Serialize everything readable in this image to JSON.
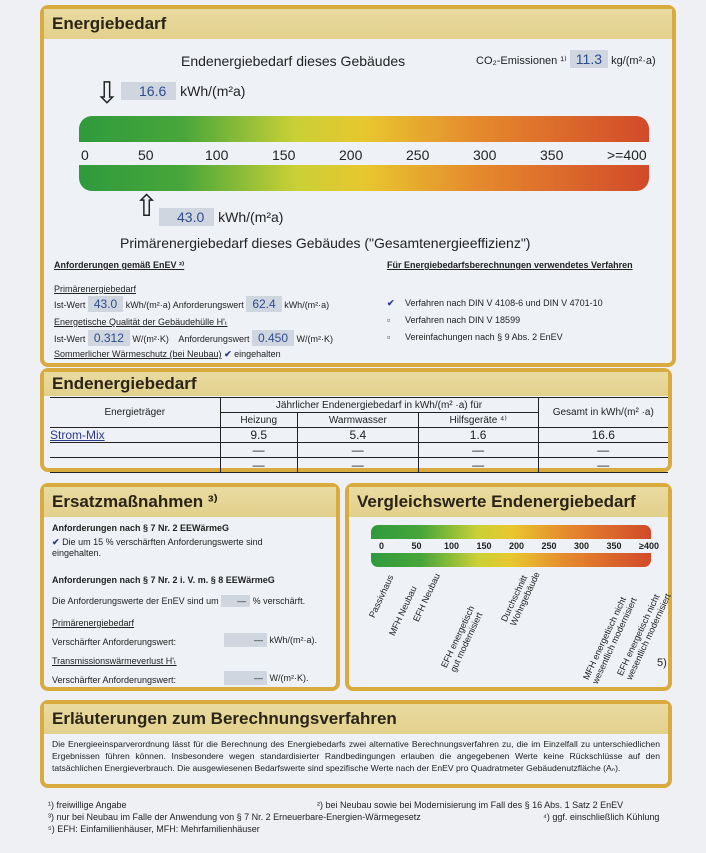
{
  "energiebedarf": {
    "title": "Energiebedarf",
    "end_label": "Endenergiebedarf   dieses  Gebäudes",
    "co2_label": "CO₂-Emissionen ¹⁾",
    "co2_value": "11.3",
    "co2_unit": "kg/(m²·a)",
    "end_value": "16.6",
    "end_value_num": 16.6,
    "unit": "kWh/(m²a)",
    "prim_value": "43.0",
    "prim_value_num": 43.0,
    "prim_label": "Primärenergiebedarf   dieses  Gebäudes   (\"Gesamtenergieeffizienz\")",
    "scale": [
      "0",
      "50",
      "100",
      "150",
      "200",
      "250",
      "300",
      "350",
      ">=400"
    ]
  },
  "anforderungen": {
    "title": "Anforderungen gemäß EnEV ²⁾",
    "prim_heading": "Primärenergiebedarf",
    "ist_label": "Ist-Wert",
    "ist_prim": "43.0",
    "unit_kwh": "kWh/(m²·a)",
    "anf_label": "Anforderungswert",
    "anf_prim": "62.4",
    "huelle_heading": "Energetische Qualität der Gebäudehülle H'ₜ",
    "ist_h": "0.312",
    "unit_w": "W/(m²·K)",
    "anf_h": "0.450",
    "sommer": "Sommerlicher Wärmeschutz (bei Neubau)",
    "sommer_status": "eingehalten"
  },
  "verfahren": {
    "title": "Für Energiebedarfsberechnungen verwendetes Verfahren",
    "items": [
      {
        "label": "Verfahren nach DIN V 4108-6 und DIN V 4701-10",
        "checked": true
      },
      {
        "label": "Verfahren nach DIN V 18599",
        "checked": false
      },
      {
        "label": "Vereinfachungen nach § 9 Abs. 2 EnEV",
        "checked": false
      }
    ]
  },
  "endtable": {
    "title": "Endenergiebedarf",
    "col_traeger": "Energieträger",
    "col_group": "Jährlicher Endenergiebedarf in kWh/(m² ·a) für",
    "cols": [
      "Heizung",
      "Warmwasser",
      "Hilfsgeräte ⁴⁾"
    ],
    "col_total": "Gesamt in kWh/(m² ·a)",
    "rows": [
      [
        "Strom-Mix",
        "9.5",
        "5.4",
        "1.6",
        "16.6"
      ],
      [
        "",
        "—",
        "—",
        "—",
        "—"
      ],
      [
        "",
        "—",
        "—",
        "—",
        "—"
      ]
    ]
  },
  "ersatz": {
    "title": "Ersatzmaßnahmen ³⁾",
    "h1": "Anforderungen nach § 7 Nr. 2 EEWärmeG",
    "check1": "Die um 15 % verschärften Anforderungswerte sind eingehalten.",
    "h2": "Anforderungen nach § 7 Nr. 2 i. V. m. § 8 EEWärmeG",
    "line1": "Die Anforderungswerte der EnEV sind um",
    "line1_val": "—",
    "line1_unit": "% verschärft.",
    "prim": "Primärenergiebedarf",
    "versch": "Verschärfter Anforderungswert:",
    "v1": "—",
    "u1": "kWh/(m²·a).",
    "trans": "Transmissionswärmeverlust H'ₜ",
    "v2": "—",
    "u2": "W/(m²·K)."
  },
  "vergleich": {
    "title": "Vergleichswerte Endenergiebedarf",
    "scale": [
      "0",
      "50",
      "100",
      "150",
      "200",
      "250",
      "300",
      "350",
      "≥400"
    ],
    "labels": [
      "Passivhaus",
      "MFH Neubau",
      "EFH Neubau",
      "EFH energetisch\ngut modernisiert",
      "Durchschnitt\nWohngebäude",
      "MFH energetisch nicht\nwesentlich modernisiert",
      "EFH energetisch nicht\nwesentlich modernisiert"
    ],
    "footnote": "5)"
  },
  "erlaeuterung": {
    "title": "Erläuterungen zum Berechnungsverfahren",
    "text": "Die Energieeinsparverordnung lässt für die Berechnung des Energiebedarfs zwei alternative Berechnungsverfahren zu, die im Einzelfall zu unterschiedlichen Ergebnissen führen können. Insbesondere wegen standardisierter Randbedingungen erlauben die angegebenen Werte keine Rückschlüsse auf den tatsächlichen Energieverbrauch. Die ausgewiesenen Bedarfswerte sind spezifische Werte nach der EnEV pro Quadratmeter Gebäudenutzfläche (Aₙ)."
  },
  "footnotes": [
    "¹) freiwillige Angabe",
    "²) bei Neubau sowie bei Modernisierung im Fall des § 16 Abs. 1 Satz 2 EnEV",
    "³) nur bei Neubau im Falle der Anwendung von § 7 Nr. 2 Erneuerbare-Energien-Wärmegesetz",
    "⁴) ggf. einschließlich Kühlung",
    "⁵) EFH: Einfamilienhäuser, MFH: Mehrfamilienhäuser"
  ]
}
